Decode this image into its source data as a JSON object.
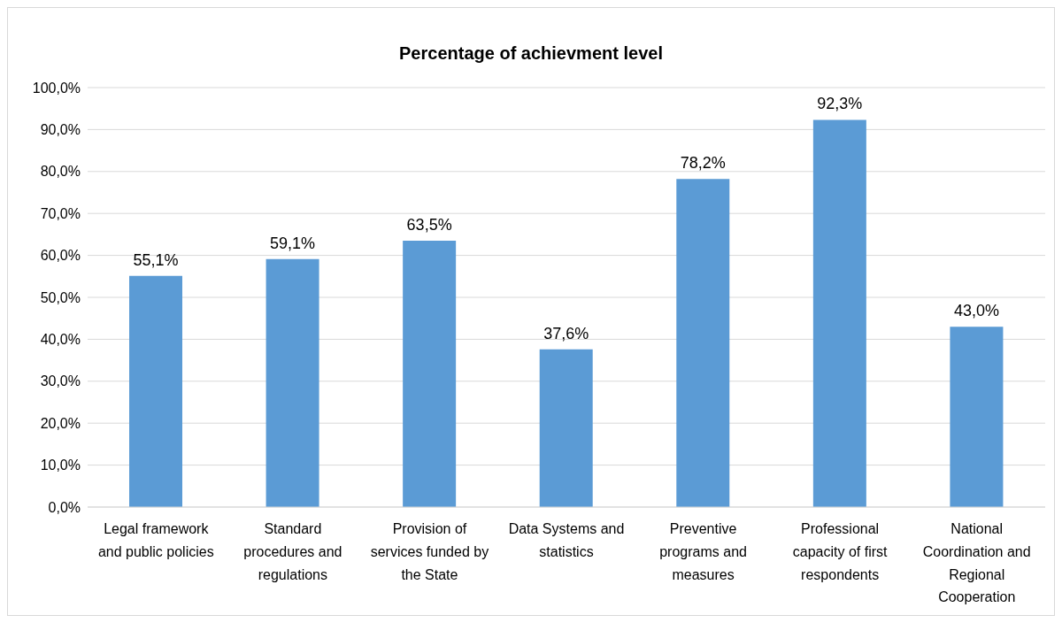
{
  "chart_data": {
    "type": "bar",
    "title": "Percentage of achievment level",
    "categories": [
      "Legal framework and public policies",
      "Standard procedures and regulations",
      "Provision of services funded by the State",
      "Data Systems and statistics",
      "Preventive programs and measures",
      "Professional capacity of first respondents",
      "National Coordination and Regional Cooperation"
    ],
    "values": [
      55.1,
      59.1,
      63.5,
      37.6,
      78.2,
      92.3,
      43.0
    ],
    "value_labels": [
      "55,1%",
      "59,1%",
      "63,5%",
      "37,6%",
      "78,2%",
      "92,3%",
      "43,0%"
    ],
    "color": "#5b9bd5",
    "ylim": [
      0,
      100
    ],
    "yticks": [
      {
        "value": 0,
        "label": "0,0%"
      },
      {
        "value": 10,
        "label": "10,0%"
      },
      {
        "value": 20,
        "label": "20,0%"
      },
      {
        "value": 30,
        "label": "30,0%"
      },
      {
        "value": 40,
        "label": "40,0%"
      },
      {
        "value": 50,
        "label": "50,0%"
      },
      {
        "value": 60,
        "label": "60,0%"
      },
      {
        "value": 70,
        "label": "70,0%"
      },
      {
        "value": 80,
        "label": "80,0%"
      },
      {
        "value": 90,
        "label": "90,0%"
      },
      {
        "value": 100,
        "label": "100,0%"
      }
    ],
    "grid": "y",
    "legend": false
  }
}
